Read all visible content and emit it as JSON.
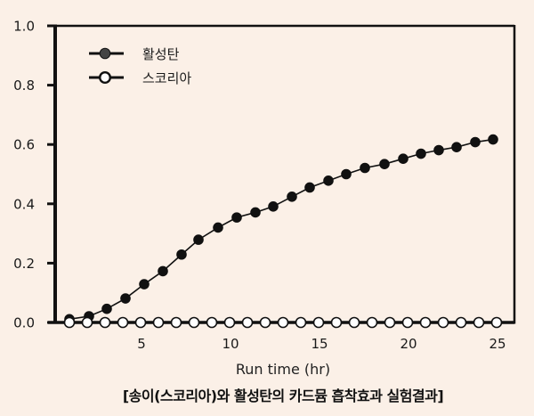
{
  "chart_data": {
    "type": "line",
    "title": "",
    "caption": "[송이(스코리아)와 활성탄의 카드뮴 흡착효과 실험결과]",
    "xlabel": "Run time (hr)",
    "ylabel": "",
    "xlim": [
      0,
      26
    ],
    "ylim": [
      0.0,
      1.0
    ],
    "x_ticks": [
      5,
      10,
      15,
      20,
      25
    ],
    "y_ticks": [
      0.0,
      0.2,
      0.4,
      0.6,
      0.8,
      1.0
    ],
    "y_tick_labels": [
      "0.0",
      "0.2",
      "0.4",
      "0.6",
      "0.8",
      "1.0"
    ],
    "grid": false,
    "legend_position": "upper-left",
    "series": [
      {
        "name": "활성탄",
        "marker": "filled-circle",
        "color": "#111111",
        "legend_marker_color": "#444444",
        "x": [
          1.0,
          2.1,
          3.1,
          4.15,
          5.2,
          6.25,
          7.3,
          8.25,
          9.35,
          10.4,
          11.45,
          12.45,
          13.5,
          14.5,
          15.55,
          16.55,
          17.6,
          18.7,
          19.75,
          20.75,
          21.75,
          22.75,
          23.8,
          24.8
        ],
        "values": [
          0.011,
          0.021,
          0.046,
          0.081,
          0.129,
          0.173,
          0.229,
          0.279,
          0.32,
          0.354,
          0.371,
          0.391,
          0.424,
          0.455,
          0.478,
          0.5,
          0.521,
          0.534,
          0.552,
          0.569,
          0.581,
          0.591,
          0.608,
          0.617
        ]
      },
      {
        "name": "스코리아",
        "marker": "open-circle",
        "color": "#111111",
        "x": [
          1,
          2,
          3,
          4,
          5,
          6,
          7,
          8,
          9,
          10,
          11,
          12,
          13,
          14,
          15,
          16,
          17,
          18,
          19,
          20,
          21,
          22,
          23,
          24,
          25
        ],
        "values": [
          0,
          0,
          0,
          0,
          0,
          0,
          0,
          0,
          0,
          0,
          0,
          0,
          0,
          0,
          0,
          0,
          0,
          0,
          0,
          0,
          0,
          0,
          0,
          0,
          0
        ]
      }
    ]
  },
  "colors": {
    "background": "#fbf0e7",
    "axis": "#111111"
  }
}
